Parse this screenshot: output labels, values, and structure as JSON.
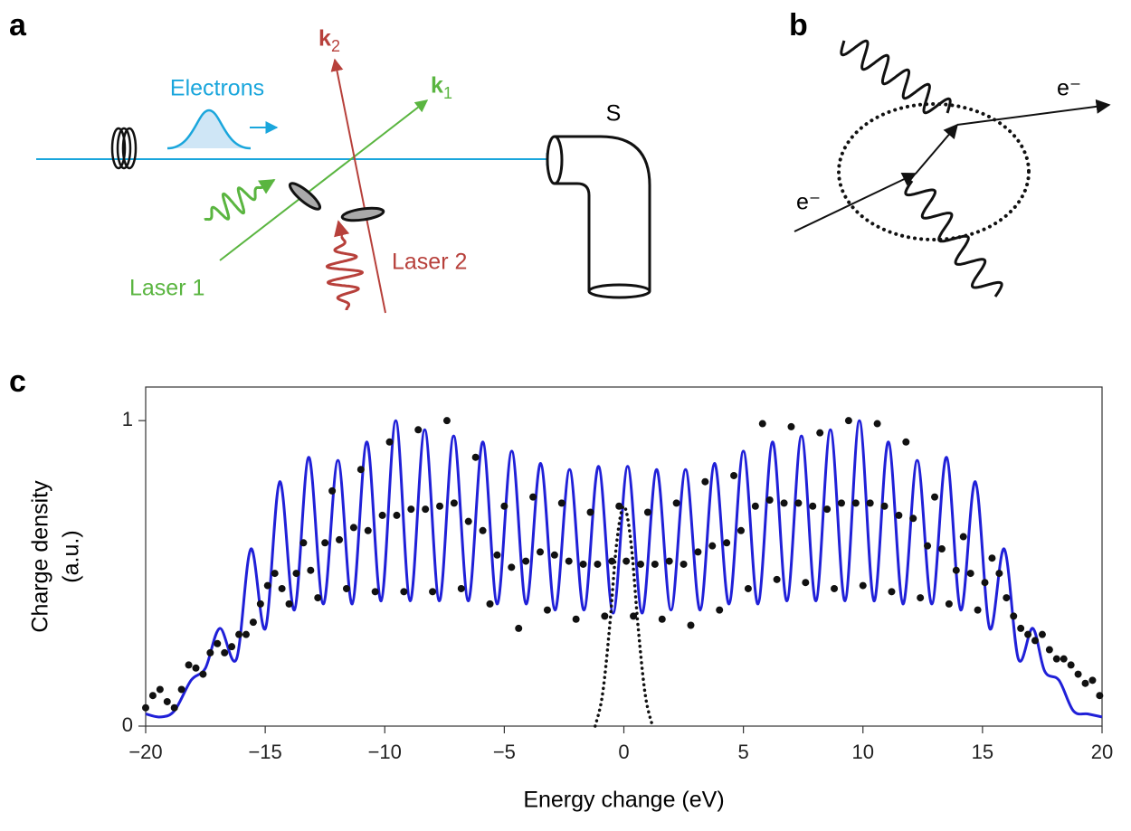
{
  "panel_labels": [
    "a",
    "b",
    "c"
  ],
  "panel_a": {
    "electrons": "Electrons",
    "laser_1": "Laser 1",
    "laser_2": "Laser 2",
    "detector": "S",
    "k1": {
      "symbol": "k",
      "subscript": "1"
    },
    "k2": {
      "symbol": "k",
      "subscript": "2"
    }
  },
  "panel_b": {
    "electron_in": "e⁻",
    "electron_out": "e⁻"
  },
  "chart_data": {
    "type": "line",
    "xlabel": "Energy change (eV)",
    "ylabel": [
      "Charge density",
      "(a.u.)"
    ],
    "xlim": [
      -20,
      20
    ],
    "ylim": [
      0,
      1.11
    ],
    "xticks": [
      {
        "value": -20,
        "label": "−20"
      },
      {
        "value": -15,
        "label": "−15"
      },
      {
        "value": -10,
        "label": "−10"
      },
      {
        "value": -5,
        "label": "−5"
      },
      0,
      5,
      10,
      15,
      20
    ],
    "yticks": [
      0,
      1
    ],
    "series": [
      {
        "type": "line",
        "color": "#2020d8",
        "x": [
          -20,
          -19.4,
          -18.8,
          -18.1,
          -17.5,
          -16.9,
          -16.2,
          -15.6,
          -14.99,
          -14.39,
          -13.78,
          -13.18,
          -12.57,
          -11.96,
          -11.36,
          -10.75,
          -10.15,
          -9.54,
          -8.94,
          -8.33,
          -7.72,
          -7.12,
          -6.51,
          -5.9,
          -5.3,
          -4.69,
          -4.09,
          -3.48,
          -2.88,
          -2.27,
          -1.67,
          -1.06,
          -0.45,
          0.16,
          0.76,
          1.37,
          1.97,
          2.58,
          3.19,
          3.79,
          4.4,
          5.0,
          5.61,
          6.22,
          6.82,
          7.43,
          8.03,
          8.64,
          9.25,
          9.85,
          10.46,
          11.06,
          11.67,
          12.27,
          12.88,
          13.49,
          14.09,
          14.7,
          15.3,
          15.91,
          16.5,
          17.1,
          17.6,
          18.2,
          18.8,
          19.4,
          20
        ],
        "values": [
          0.04,
          0.03,
          0.05,
          0.15,
          0.19,
          0.32,
          0.22,
          0.58,
          0.32,
          0.8,
          0.38,
          0.88,
          0.4,
          0.87,
          0.4,
          0.93,
          0.41,
          1.0,
          0.41,
          0.97,
          0.41,
          0.95,
          0.41,
          0.93,
          0.4,
          0.9,
          0.4,
          0.86,
          0.38,
          0.84,
          0.38,
          0.85,
          0.37,
          0.85,
          0.37,
          0.84,
          0.38,
          0.84,
          0.38,
          0.86,
          0.4,
          0.9,
          0.4,
          0.93,
          0.41,
          0.95,
          0.41,
          0.97,
          0.41,
          1.0,
          0.41,
          0.93,
          0.4,
          0.87,
          0.4,
          0.88,
          0.38,
          0.8,
          0.32,
          0.58,
          0.22,
          0.32,
          0.18,
          0.15,
          0.05,
          0.04,
          0.03
        ]
      },
      {
        "type": "scatter",
        "color": "#111111",
        "x": [
          -20,
          -19.7,
          -19.4,
          -19.1,
          -18.8,
          -18.5,
          -18.2,
          -17.9,
          -17.6,
          -17.3,
          -17,
          -16.7,
          -16.4,
          -16.1,
          -15.8,
          -15.5,
          -15.2,
          -14.9,
          -14.6,
          -14.3,
          -14,
          -13.7,
          -13.4,
          -13.1,
          -12.8,
          -12.5,
          -12.2,
          -11.9,
          -11.6,
          -11.3,
          -11,
          -10.7,
          -10.4,
          -10.1,
          -9.8,
          -9.5,
          -9.2,
          -8.9,
          -8.6,
          -8.3,
          -8,
          -7.7,
          -7.4,
          -7.1,
          -6.8,
          -6.5,
          -6.2,
          -5.9,
          -5.6,
          -5.3,
          -5,
          -4.7,
          -4.4,
          -4.1,
          -3.8,
          -3.5,
          -3.2,
          -2.9,
          -2.6,
          -2.3,
          -2,
          -1.7,
          -1.4,
          -1.1,
          -0.8,
          -0.5,
          -0.2,
          0.1,
          0.4,
          0.7,
          1,
          1.3,
          1.6,
          1.9,
          2.2,
          2.5,
          2.8,
          3.1,
          3.4,
          3.7,
          4,
          4.3,
          4.6,
          4.9,
          5.2,
          5.5,
          5.8,
          6.1,
          6.4,
          6.7,
          7,
          7.3,
          7.6,
          7.9,
          8.2,
          8.5,
          8.8,
          9.1,
          9.4,
          9.7,
          10,
          10.3,
          10.6,
          10.9,
          11.2,
          11.5,
          11.8,
          12.1,
          12.4,
          12.7,
          13,
          13.3,
          13.6,
          13.9,
          14.2,
          14.5,
          14.8,
          15.1,
          15.4,
          15.7,
          16,
          16.3,
          16.6,
          16.9,
          17.2,
          17.5,
          17.8,
          18.1,
          18.4,
          18.7,
          19,
          19.3,
          19.6,
          19.9
        ],
        "values": [
          0.06,
          0.1,
          0.12,
          0.08,
          0.06,
          0.12,
          0.2,
          0.19,
          0.17,
          0.24,
          0.27,
          0.24,
          0.26,
          0.3,
          0.3,
          0.34,
          0.4,
          0.46,
          0.5,
          0.45,
          0.4,
          0.5,
          0.6,
          0.51,
          0.42,
          0.6,
          0.77,
          0.61,
          0.45,
          0.65,
          0.84,
          0.64,
          0.44,
          0.69,
          0.93,
          0.69,
          0.44,
          0.71,
          0.97,
          0.71,
          0.44,
          0.72,
          1.0,
          0.73,
          0.45,
          0.67,
          0.88,
          0.64,
          0.4,
          0.56,
          0.72,
          0.52,
          0.32,
          0.54,
          0.75,
          0.57,
          0.38,
          0.56,
          0.73,
          0.54,
          0.35,
          0.53,
          0.7,
          0.53,
          0.36,
          0.54,
          0.72,
          0.54,
          0.36,
          0.53,
          0.7,
          0.53,
          0.35,
          0.54,
          0.73,
          0.53,
          0.33,
          0.57,
          0.8,
          0.59,
          0.38,
          0.6,
          0.82,
          0.64,
          0.45,
          0.72,
          0.99,
          0.74,
          0.48,
          0.73,
          0.98,
          0.73,
          0.47,
          0.72,
          0.96,
          0.71,
          0.45,
          0.73,
          1.0,
          0.73,
          0.46,
          0.73,
          0.99,
          0.72,
          0.44,
          0.69,
          0.93,
          0.68,
          0.42,
          0.59,
          0.75,
          0.58,
          0.4,
          0.51,
          0.62,
          0.5,
          0.38,
          0.47,
          0.55,
          0.5,
          0.42,
          0.36,
          0.32,
          0.3,
          0.28,
          0.3,
          0.25,
          0.22,
          0.22,
          0.2,
          0.17,
          0.14,
          0.15,
          0.1
        ]
      },
      {
        "type": "line",
        "style": "dotted",
        "color": "#111111",
        "x": [
          -1.2,
          -0.9,
          -0.6,
          -0.3,
          0,
          0.3,
          0.6,
          0.9,
          1.2
        ],
        "values": [
          0,
          0.1,
          0.32,
          0.6,
          0.72,
          0.6,
          0.32,
          0.1,
          0
        ]
      }
    ]
  }
}
